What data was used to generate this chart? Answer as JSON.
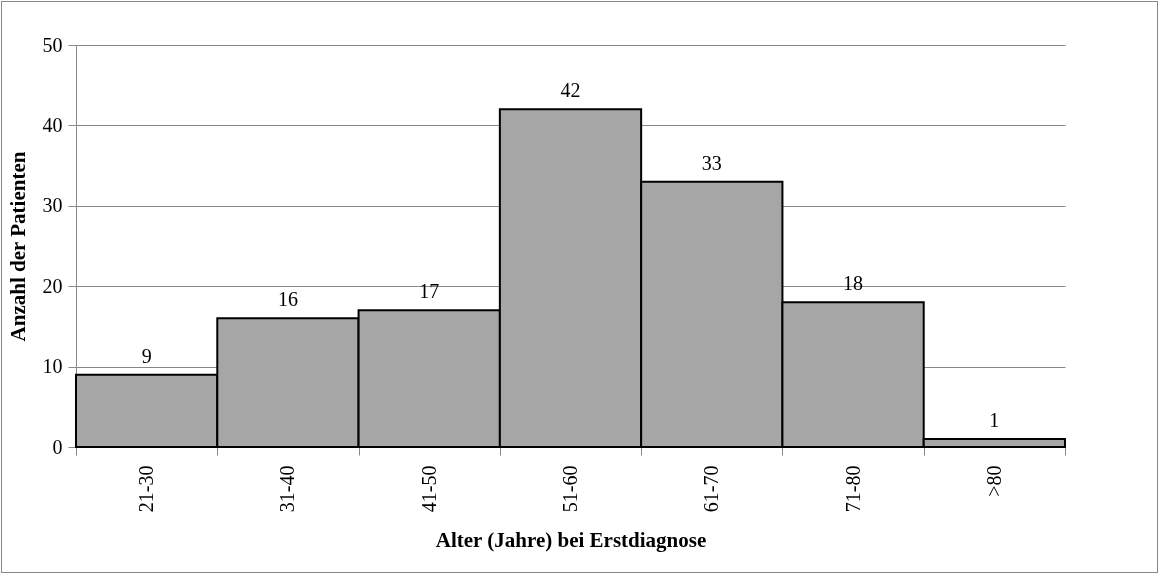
{
  "chart_data": {
    "type": "bar",
    "xlabel": "Alter (Jahre) bei Erstdiagnose",
    "ylabel": "Anzahl der Patienten",
    "categories": [
      "21-30",
      "31-40",
      "41-50",
      "51-60",
      "61-70",
      "71-80",
      ">80"
    ],
    "values": [
      9,
      16,
      17,
      42,
      33,
      18,
      1
    ],
    "color": "#a6a6a6",
    "ylim": [
      0,
      50
    ],
    "yticks": [
      0,
      10,
      20,
      30,
      40,
      50
    ],
    "grid": "y",
    "data_labels": true
  }
}
